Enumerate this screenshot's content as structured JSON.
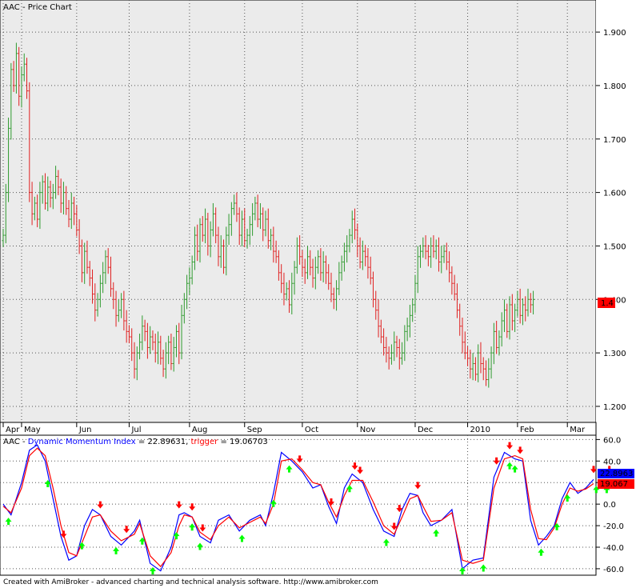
{
  "colors": {
    "panel_bg": "#ebebeb",
    "bar_up": "#2e9a2e",
    "bar_down": "#e02020",
    "dmi_line": "#0000ff",
    "trigger_line": "#ff0000",
    "buy_arrow": "#00ff00",
    "sell_arrow": "#ff0000",
    "axis_text": "#000000"
  },
  "price_panel": {
    "title": "AAC - Price Chart",
    "last_value_label": "1.4"
  },
  "indicator_panel": {
    "title_prefix": "AAC - ",
    "dmi_name": "Dynamic Momentum Index",
    "dmi_value_text": " = 22.89631, ",
    "trigger_name": "trigger",
    "trigger_value_text": " = 19.06703",
    "dmi_last_label": "22.8963",
    "trigger_last_label": "19.067"
  },
  "footer": "Created with AmiBroker - advanced charting and technical analysis software. http://www.amibroker.com",
  "chart_data": [
    {
      "type": "ohlc",
      "title": "AAC - Price Chart",
      "y_ticks": [
        "1.200",
        "1.300",
        "1.400",
        "1.500",
        "1.600",
        "1.700",
        "1.800",
        "1.900"
      ],
      "ylim": [
        1.17,
        1.96
      ],
      "months": [
        {
          "label": "Apr",
          "bar": 0
        },
        {
          "label": "May",
          "bar": 7
        },
        {
          "label": "Jun",
          "bar": 28
        },
        {
          "label": "Jul",
          "bar": 48
        },
        {
          "label": "Aug",
          "bar": 71
        },
        {
          "label": "Sep",
          "bar": 92
        },
        {
          "label": "Oct",
          "bar": 114
        },
        {
          "label": "Nov",
          "bar": 135
        },
        {
          "label": "Dec",
          "bar": 157
        },
        {
          "label": "2010",
          "bar": 177
        },
        {
          "label": "Feb",
          "bar": 196
        },
        {
          "label": "Mar",
          "bar": 215
        }
      ],
      "close": [
        1.52,
        1.6,
        1.72,
        1.83,
        1.8,
        1.86,
        1.78,
        1.82,
        1.84,
        1.79,
        1.6,
        1.56,
        1.58,
        1.55,
        1.6,
        1.62,
        1.58,
        1.61,
        1.59,
        1.6,
        1.63,
        1.61,
        1.58,
        1.6,
        1.57,
        1.55,
        1.58,
        1.56,
        1.53,
        1.5,
        1.45,
        1.49,
        1.46,
        1.44,
        1.41,
        1.38,
        1.4,
        1.43,
        1.45,
        1.48,
        1.46,
        1.42,
        1.4,
        1.37,
        1.38,
        1.4,
        1.36,
        1.34,
        1.33,
        1.3,
        1.27,
        1.3,
        1.32,
        1.35,
        1.34,
        1.31,
        1.33,
        1.32,
        1.3,
        1.32,
        1.29,
        1.27,
        1.3,
        1.32,
        1.28,
        1.31,
        1.34,
        1.3,
        1.37,
        1.4,
        1.43,
        1.44,
        1.47,
        1.52,
        1.49,
        1.54,
        1.52,
        1.55,
        1.5,
        1.53,
        1.56,
        1.52,
        1.48,
        1.5,
        1.46,
        1.52,
        1.54,
        1.57,
        1.58,
        1.56,
        1.52,
        1.55,
        1.51,
        1.52,
        1.54,
        1.56,
        1.58,
        1.55,
        1.56,
        1.53,
        1.55,
        1.51,
        1.52,
        1.49,
        1.48,
        1.45,
        1.43,
        1.41,
        1.42,
        1.39,
        1.43,
        1.46,
        1.5,
        1.48,
        1.46,
        1.45,
        1.48,
        1.46,
        1.44,
        1.46,
        1.48,
        1.45,
        1.47,
        1.45,
        1.43,
        1.41,
        1.4,
        1.42,
        1.45,
        1.47,
        1.49,
        1.5,
        1.52,
        1.55,
        1.53,
        1.5,
        1.47,
        1.49,
        1.48,
        1.46,
        1.44,
        1.4,
        1.38,
        1.35,
        1.33,
        1.31,
        1.3,
        1.29,
        1.3,
        1.32,
        1.31,
        1.29,
        1.3,
        1.34,
        1.35,
        1.37,
        1.39,
        1.43,
        1.48,
        1.49,
        1.5,
        1.49,
        1.48,
        1.5,
        1.49,
        1.5,
        1.47,
        1.48,
        1.49,
        1.47,
        1.45,
        1.43,
        1.41,
        1.38,
        1.35,
        1.32,
        1.3,
        1.29,
        1.27,
        1.28,
        1.26,
        1.3,
        1.28,
        1.27,
        1.25,
        1.27,
        1.3,
        1.34,
        1.31,
        1.33,
        1.36,
        1.38,
        1.34,
        1.39,
        1.36,
        1.38,
        1.4,
        1.37,
        1.39,
        1.38,
        1.4,
        1.39,
        1.4
      ]
    },
    {
      "type": "line",
      "title": "AAC - Dynamic Momentum Index = 22.89631, trigger = 19.06703",
      "y_ticks": [
        "60.0",
        "40.0",
        "20.0",
        "0.0",
        "-20.0",
        "-40.0",
        "-60.0"
      ],
      "ylim": [
        -66,
        64
      ],
      "series": [
        {
          "name": "Dynamic Momentum Index",
          "x": [
            0,
            3,
            7,
            10,
            13,
            16,
            19,
            22,
            25,
            28,
            31,
            34,
            37,
            41,
            45,
            50,
            52,
            56,
            60,
            64,
            67,
            69,
            72,
            75,
            79,
            82,
            86,
            90,
            94,
            98,
            100,
            103,
            106,
            110,
            114,
            118,
            121,
            124,
            127,
            130,
            133,
            137,
            141,
            145,
            149,
            152,
            155,
            158,
            160,
            163,
            167,
            171,
            175,
            179,
            183,
            187,
            191,
            195,
            198,
            201,
            204,
            207,
            210,
            213,
            216,
            219,
            222,
            225
          ],
          "y": [
            0,
            -10,
            20,
            50,
            55,
            40,
            5,
            -30,
            -52,
            -48,
            -20,
            -5,
            -10,
            -30,
            -38,
            -25,
            -15,
            -55,
            -62,
            -40,
            -10,
            -8,
            -12,
            -30,
            -36,
            -15,
            -10,
            -25,
            -15,
            -10,
            -20,
            10,
            48,
            40,
            30,
            15,
            18,
            -2,
            -18,
            15,
            28,
            20,
            -5,
            -25,
            -30,
            -5,
            10,
            8,
            -8,
            -20,
            -15,
            -5,
            -60,
            -52,
            -50,
            25,
            48,
            42,
            40,
            -15,
            -38,
            -30,
            -20,
            5,
            20,
            10,
            15,
            22.9
          ]
        },
        {
          "name": "trigger",
          "x": [
            0,
            3,
            7,
            10,
            13,
            16,
            19,
            22,
            25,
            28,
            31,
            34,
            37,
            41,
            45,
            50,
            52,
            56,
            60,
            64,
            67,
            69,
            72,
            75,
            79,
            82,
            86,
            90,
            94,
            98,
            100,
            103,
            106,
            110,
            114,
            118,
            121,
            124,
            127,
            130,
            133,
            137,
            141,
            145,
            149,
            152,
            155,
            158,
            160,
            163,
            167,
            171,
            175,
            179,
            183,
            187,
            191,
            195,
            198,
            201,
            204,
            207,
            210,
            213,
            216,
            219,
            222,
            225
          ],
          "y": [
            -2,
            -8,
            15,
            45,
            52,
            45,
            15,
            -20,
            -45,
            -48,
            -30,
            -12,
            -10,
            -25,
            -34,
            -28,
            -18,
            -48,
            -58,
            -45,
            -20,
            -10,
            -12,
            -26,
            -33,
            -20,
            -12,
            -22,
            -17,
            -12,
            -18,
            0,
            40,
            42,
            32,
            20,
            18,
            2,
            -12,
            8,
            22,
            22,
            2,
            -20,
            -28,
            -12,
            5,
            8,
            -2,
            -16,
            -15,
            -8,
            -52,
            -55,
            -52,
            15,
            42,
            45,
            42,
            -5,
            -32,
            -33,
            -22,
            0,
            15,
            12,
            14,
            19.07
          ]
        }
      ],
      "buy_signals_x": [
        2,
        17,
        30,
        43,
        53,
        57,
        66,
        72,
        75,
        91,
        103,
        109,
        132,
        146,
        165,
        175,
        183,
        193,
        195,
        205,
        211,
        215,
        226,
        230
      ],
      "sell_signals_x": [
        23,
        37,
        47,
        67,
        72,
        76,
        113,
        125,
        134,
        136,
        149,
        151,
        158,
        188,
        193,
        197,
        225,
        231
      ],
      "legend": [
        "Dynamic Momentum Index",
        "trigger"
      ]
    }
  ]
}
